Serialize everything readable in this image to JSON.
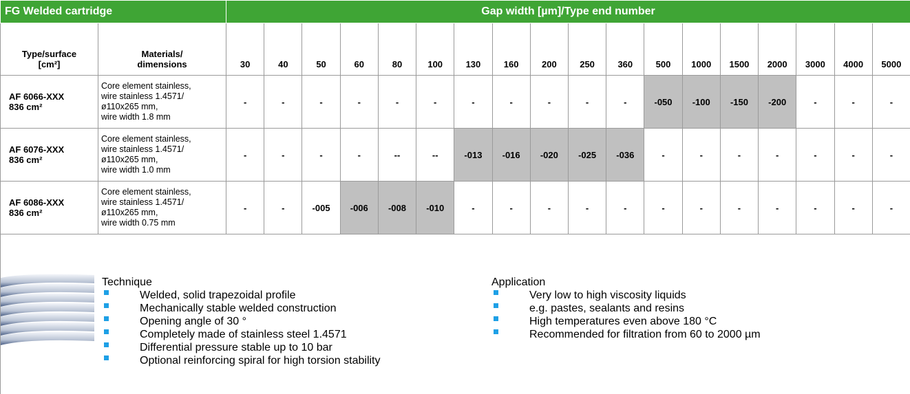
{
  "header": {
    "title": "FG Welded cartridge",
    "gap_title": "Gap width [µm]/Type end number"
  },
  "columns": {
    "type": [
      "Type/surface",
      "[cm²]"
    ],
    "materials": [
      "Materials/",
      "dimensions"
    ],
    "gaps": [
      30,
      40,
      50,
      60,
      80,
      100,
      130,
      160,
      200,
      250,
      360,
      500,
      1000,
      1500,
      2000,
      3000,
      4000,
      5000
    ]
  },
  "rows": [
    {
      "type": [
        "AF 6066-XXX",
        "836 cm²"
      ],
      "materials": [
        "Core element stainless,",
        "wire stainless 1.4571/",
        "ø110x265 mm,",
        "wire width 1.8 mm"
      ],
      "cells": [
        "-",
        "-",
        "-",
        "-",
        "-",
        "-",
        "-",
        "-",
        "-",
        "-",
        "-",
        "-050",
        "-100",
        "-150",
        "-200",
        "-",
        "-",
        "-"
      ],
      "highlight": [
        11,
        12,
        13,
        14
      ]
    },
    {
      "type": [
        "AF 6076-XXX",
        "836 cm²"
      ],
      "materials": [
        "Core element stainless,",
        "wire stainless 1.4571/",
        "ø110x265 mm,",
        "wire width 1.0 mm"
      ],
      "cells": [
        "-",
        "-",
        "-",
        "-",
        "--",
        "--",
        "-013",
        "-016",
        "-020",
        "-025",
        "-036",
        "-",
        "-",
        "-",
        "-",
        "-",
        "-",
        "-"
      ],
      "highlight": [
        6,
        7,
        8,
        9,
        10
      ]
    },
    {
      "type": [
        "AF 6086-XXX",
        "836 cm²"
      ],
      "materials": [
        "Core element stainless,",
        "wire stainless 1.4571/",
        "ø110x265 mm,",
        "wire width 0.75 mm"
      ],
      "cells": [
        "-",
        "-",
        "-005",
        "-006",
        "-008",
        "-010",
        "-",
        "-",
        "-",
        "-",
        "-",
        "-",
        "-",
        "-",
        "-",
        "-",
        "-",
        "-"
      ],
      "highlight": [
        3,
        4,
        5
      ]
    }
  ],
  "footer": {
    "technique": {
      "title": "Technique",
      "items": [
        "Welded, solid trapezoidal profile",
        "Mechanically stable welded construction",
        "Opening angle of 30 °",
        "Completely made of stainless steel 1.4571",
        "Differential pressure stable up to 10 bar",
        "Optional reinforcing spiral for high torsion stability"
      ]
    },
    "application": {
      "title": "Application",
      "items": [
        "Very low to high viscosity liquids",
        "e.g. pastes, sealants and resins",
        "High temperatures even above 180 °C",
        "Recommended for filtration from 60 to 2000 µm"
      ]
    }
  }
}
